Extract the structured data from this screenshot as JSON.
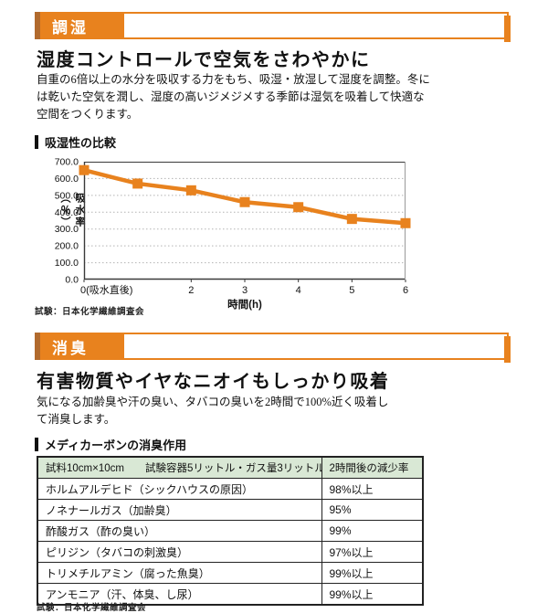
{
  "colors": {
    "accent_orange": "#e8821e",
    "accent_dark_strip": "#b16a2d",
    "table_header_bg": "#d9e8d5",
    "grid_line": "#b3b3b3",
    "axis_line": "#3a3a3a"
  },
  "section1": {
    "banner_label": "調湿",
    "heading": "湿度コントロールで空気をさわやかに",
    "body_lines": [
      "自重の6倍以上の水分を吸収する力をもち、吸湿・放湿して湿度を調整。冬に",
      "は乾いた空気を潤し、湿度の高いジメジメする季節は湿気を吸着して快適な",
      "空間をつくります。"
    ],
    "chart_title": "吸湿性の比較",
    "source": "試験：日本化学繊維調査会"
  },
  "chart_data": {
    "type": "line",
    "title": "吸湿性の比較",
    "x": [
      0,
      1,
      2,
      3,
      4,
      5,
      6
    ],
    "values": [
      650,
      570,
      530,
      460,
      430,
      360,
      335
    ],
    "xlabel": "時間(h)",
    "ylabel": "吸水率（％）",
    "ylim": [
      0,
      700
    ],
    "ytick_step": 100,
    "xtick_labels": [
      {
        "pos": 0,
        "label": "0(吸水直後)"
      },
      {
        "pos": 2,
        "label": "2"
      },
      {
        "pos": 3,
        "label": "3"
      },
      {
        "pos": 4,
        "label": "4"
      },
      {
        "pos": 5,
        "label": "5"
      },
      {
        "pos": 6,
        "label": "6"
      }
    ],
    "series_color": "#e8821e",
    "marker": "square",
    "grid": "horizontal-dotted",
    "legend": "none",
    "source": "試験：日本化学繊維調査会"
  },
  "section2": {
    "banner_label": "消臭",
    "heading": "有害物質やイヤなニオイもしっかり吸着",
    "body_lines": [
      "気になる加齢臭や汗の臭い、タバコの臭いを2時間で100%近く吸着し",
      "て消臭します。"
    ],
    "table_title": "メディカーボンの消臭作用",
    "source": "試験：日本化学繊維調査会"
  },
  "table": {
    "header": [
      "試料10cm×10cm　　試験容器5リットル・ガス量3リットル",
      "2時間後の減少率"
    ],
    "rows": [
      {
        "substance": "ホルムアルデヒド（シックハウスの原因）",
        "reduction": "98%以上"
      },
      {
        "substance": "ノネナールガス（加齢臭）",
        "reduction": "95%"
      },
      {
        "substance": "酢酸ガス（酢の臭い）",
        "reduction": "99%"
      },
      {
        "substance": "ピリジン（タバコの刺激臭）",
        "reduction": "97%以上"
      },
      {
        "substance": "トリメチルアミン（腐った魚臭）",
        "reduction": "99%以上"
      },
      {
        "substance": "アンモニア（汗、体臭、し尿）",
        "reduction": "99%以上"
      }
    ]
  }
}
